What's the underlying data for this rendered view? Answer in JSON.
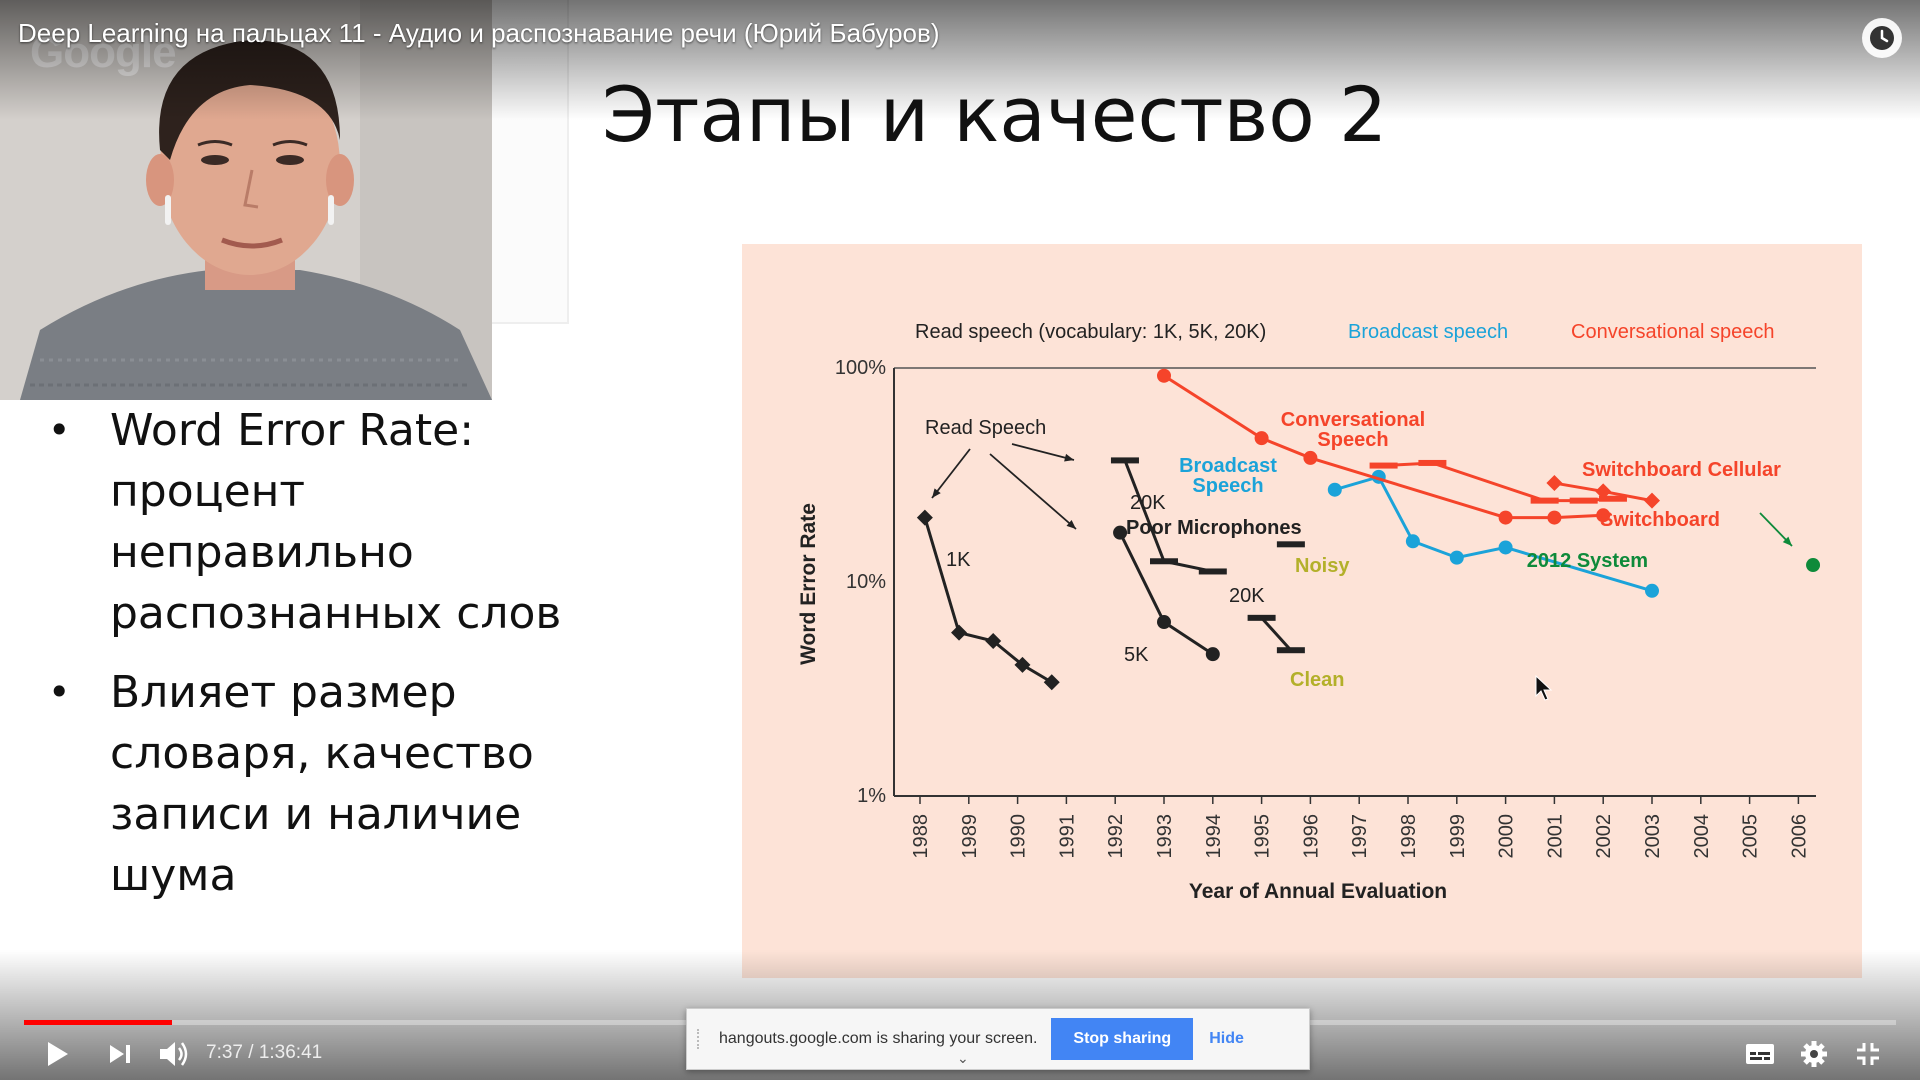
{
  "player": {
    "title": "Deep Learning на пальцах 11 - Аудио и распознавание речи (Юрий Бабуров)",
    "time_current": "7:37",
    "time_separator": " / ",
    "time_total": "1:36:41",
    "progress_played": 0.079,
    "progress_buffered": 0.078,
    "accent_color": "#ff0000",
    "icons": [
      "watch-later-icon",
      "play-icon",
      "next-icon",
      "volume-icon",
      "subtitles-icon",
      "settings-icon",
      "exit-fullscreen-icon"
    ]
  },
  "webcam": {
    "watermark": "Google"
  },
  "slide": {
    "title": "Этапы и качество 2",
    "bullets": [
      {
        "lines": [
          "Word Error Rate:",
          "процент",
          "неправильно",
          "распознанных слов"
        ]
      },
      {
        "lines": [
          "Влияет размер",
          "словаря, качество",
          "записи и наличие",
          "шума"
        ]
      }
    ]
  },
  "chart_data": {
    "type": "line",
    "xlabel": "Year of Annual Evaluation",
    "ylabel": "Word Error Rate",
    "yscale": "log",
    "ylim": [
      1,
      100
    ],
    "yticks": [
      "100%",
      "10%",
      "1%"
    ],
    "categories": [
      "1988",
      "1989",
      "1990",
      "1991",
      "1992",
      "1993",
      "1994",
      "1995",
      "1996",
      "1997",
      "1998",
      "1999",
      "2000",
      "2001",
      "2002",
      "2003",
      "2004",
      "2005",
      "2006"
    ],
    "legend": [
      {
        "label": "Read speech (vocabulary: 1K, 5K, 20K)",
        "color": "#222222"
      },
      {
        "label": "Broadcast speech",
        "color": "#1ba3d9"
      },
      {
        "label": "Conversational speech",
        "color": "#f5442a"
      }
    ],
    "series": [
      {
        "name": "1K",
        "color": "#222222",
        "marker": "diamond",
        "points": [
          [
            1988.1,
            20
          ],
          [
            1988.8,
            5.8
          ],
          [
            1989.5,
            5.3
          ],
          [
            1990.1,
            4.1
          ],
          [
            1990.7,
            3.4
          ]
        ]
      },
      {
        "name": "5K",
        "color": "#222222",
        "marker": "circle",
        "points": [
          [
            1992.1,
            17
          ],
          [
            1993.0,
            6.5
          ],
          [
            1994.0,
            4.6
          ]
        ]
      },
      {
        "name": "20K",
        "color": "#222222",
        "marker": "dash",
        "points": [
          [
            1992.2,
            37
          ],
          [
            1993.0,
            12.5
          ],
          [
            1994.0,
            11.2
          ]
        ]
      },
      {
        "name": "Noisy",
        "color": "#222222",
        "marker": "dash",
        "points": [
          [
            1995.6,
            15
          ]
        ]
      },
      {
        "name": "Clean",
        "color": "#222222",
        "marker": "dash",
        "points": [
          [
            1995.0,
            6.8
          ],
          [
            1995.6,
            4.8
          ]
        ]
      },
      {
        "name": "Broadcast Speech",
        "color": "#1ba3d9",
        "marker": "circle",
        "points": [
          [
            1996.5,
            27
          ],
          [
            1997.4,
            31
          ],
          [
            1998.1,
            15.5
          ],
          [
            1999.0,
            13
          ],
          [
            2000.0,
            14.5
          ],
          [
            2003.0,
            9.1
          ]
        ]
      },
      {
        "name": "Conversational Speech",
        "color": "#f5442a",
        "marker": "circle",
        "points": [
          [
            1993.0,
            92
          ],
          [
            1995.0,
            47
          ],
          [
            1996.0,
            38
          ],
          [
            2000.0,
            20
          ],
          [
            2001.0,
            20
          ],
          [
            2002.0,
            20.5
          ]
        ]
      },
      {
        "name": "Switchboard",
        "color": "#f5442a",
        "marker": "dash",
        "points": [
          [
            1997.5,
            35
          ],
          [
            1998.5,
            36
          ],
          [
            2000.8,
            24
          ],
          [
            2001.6,
            24
          ],
          [
            2002.2,
            24.5
          ]
        ]
      },
      {
        "name": "Switchboard Cellular",
        "color": "#f5442a",
        "marker": "diamond",
        "points": [
          [
            2001.0,
            29
          ],
          [
            2002.0,
            26.5
          ],
          [
            2003.0,
            24
          ]
        ]
      },
      {
        "name": "2012 System",
        "color": "#0e8a3a",
        "marker": "circle",
        "points": [
          [
            2006.3,
            12
          ]
        ]
      }
    ],
    "annotations": [
      {
        "text": "Read Speech",
        "color": "#222222"
      },
      {
        "text": "1K",
        "color": "#222222"
      },
      {
        "text": "5K",
        "color": "#222222"
      },
      {
        "text": "20K",
        "color": "#222222"
      },
      {
        "text": "20K",
        "color": "#222222"
      },
      {
        "text": "Poor Microphones",
        "color": "#222222",
        "bold": true
      },
      {
        "text": "Noisy",
        "color": "#b3b02a",
        "bold": true
      },
      {
        "text": "Clean",
        "color": "#b3b02a",
        "bold": true
      },
      {
        "text": "Broadcast",
        "color": "#1ba3d9",
        "bold": true
      },
      {
        "text": "Speech",
        "color": "#1ba3d9",
        "bold": true
      },
      {
        "text": "Conversational",
        "color": "#f5442a",
        "bold": true
      },
      {
        "text": "Speech",
        "color": "#f5442a",
        "bold": true
      },
      {
        "text": "Switchboard Cellular",
        "color": "#f5442a",
        "bold": true
      },
      {
        "text": "Switchboard",
        "color": "#f5442a",
        "bold": true
      },
      {
        "text": "2012 System",
        "color": "#0e8a3a",
        "bold": true
      }
    ]
  },
  "share_bar": {
    "message": "hangouts.google.com is sharing your screen.",
    "stop_label": "Stop sharing",
    "hide_label": "Hide"
  }
}
